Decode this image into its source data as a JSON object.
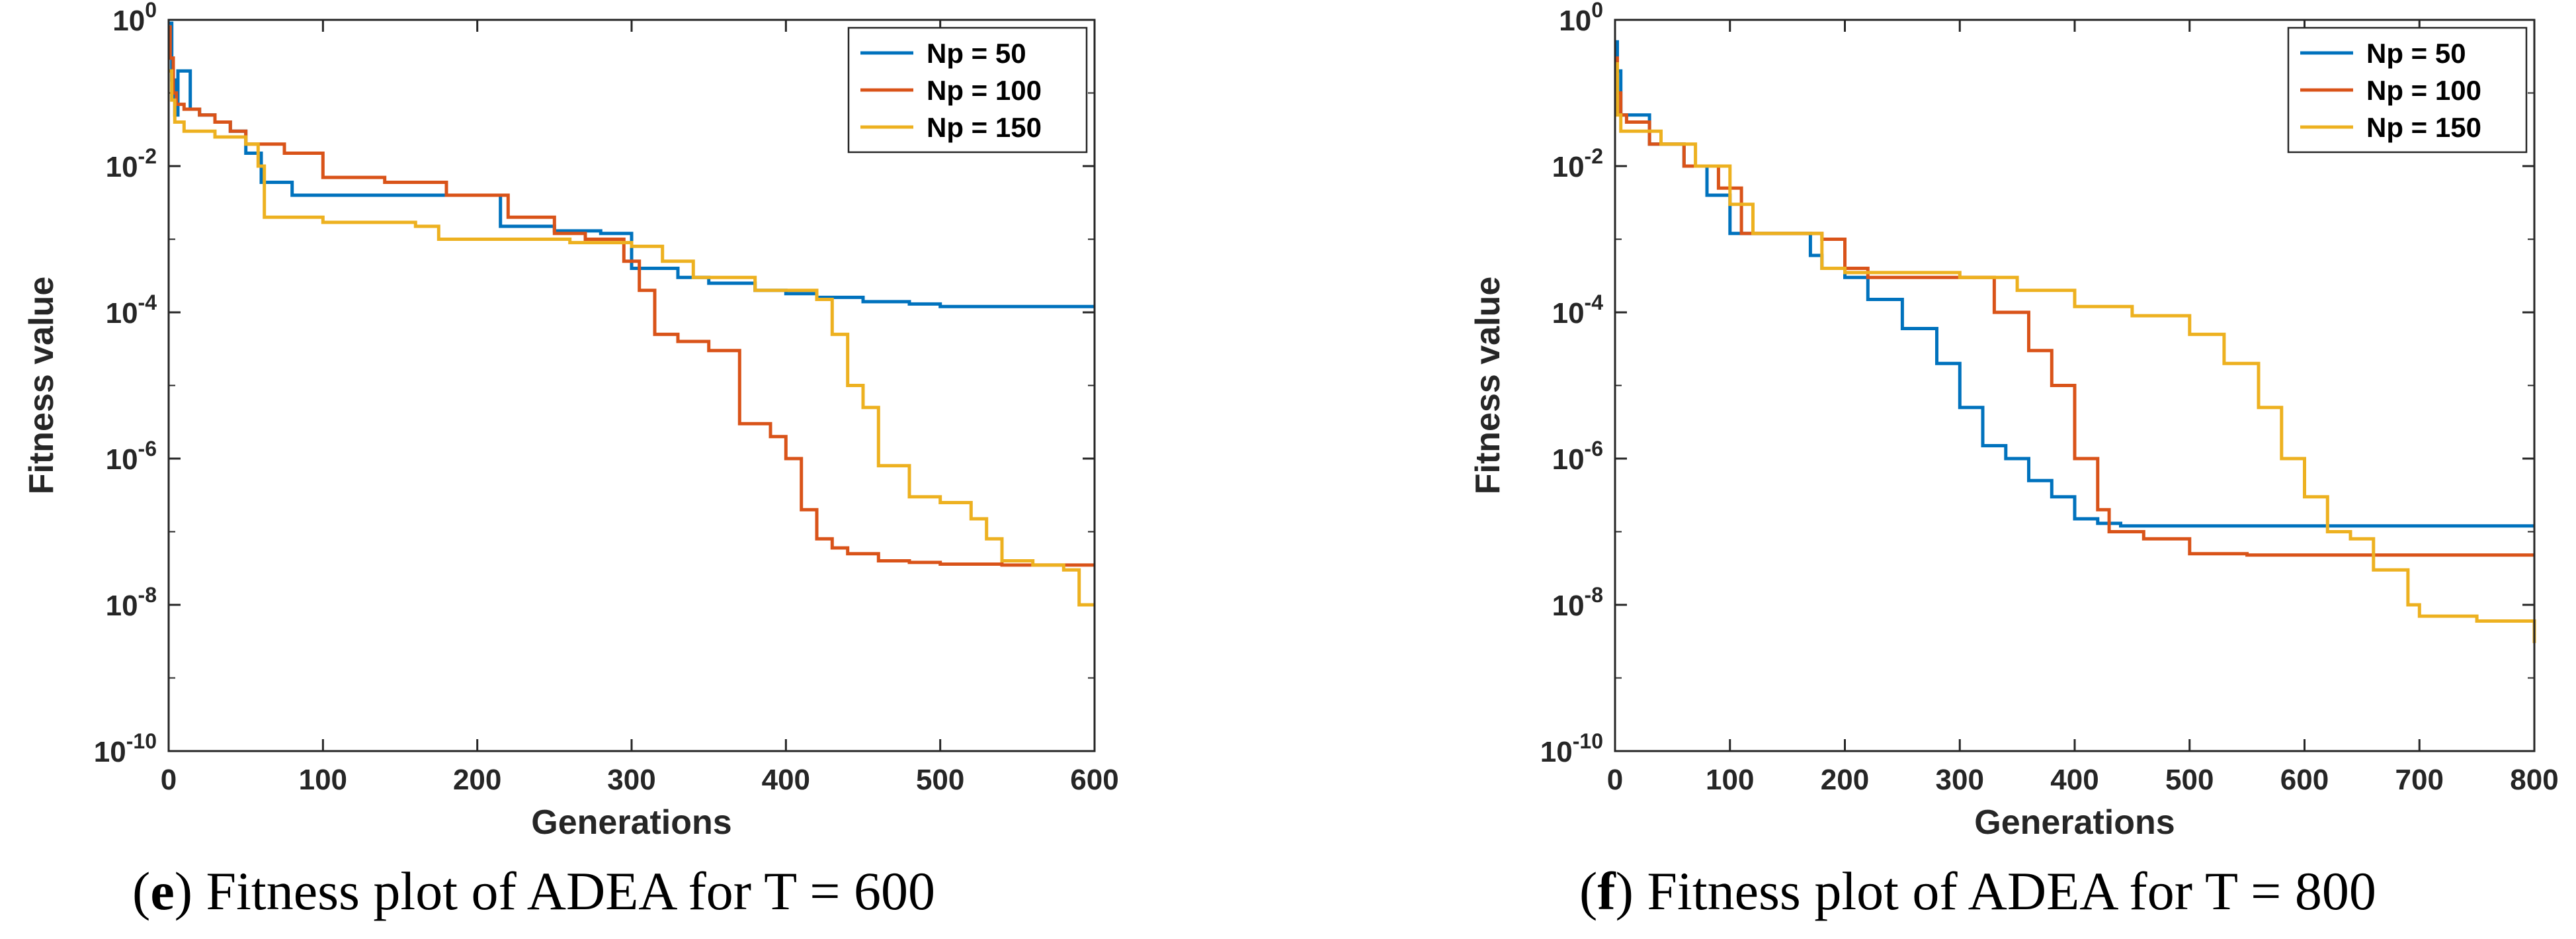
{
  "figure_domain": "Chart",
  "colors": {
    "np50": "#0072BD",
    "np100": "#D95319",
    "np150": "#EDB120",
    "axis": "#262626"
  },
  "chart_data": [
    {
      "id": "e",
      "type": "line",
      "yscale": "log",
      "title": "",
      "xlabel": "Generations",
      "ylabel": "Fitness value",
      "xlim": [
        0,
        600
      ],
      "ylim": [
        1e-10,
        1
      ],
      "xticks": [
        0,
        100,
        200,
        300,
        400,
        500,
        600
      ],
      "xtick_labels": [
        "0",
        "100",
        "200",
        "300",
        "400",
        "500",
        "600"
      ],
      "yticks": [
        {
          "value": 1,
          "base": "10",
          "exp": "0"
        },
        {
          "value": 0.01,
          "base": "10",
          "exp": "-2"
        },
        {
          "value": 0.0001,
          "base": "10",
          "exp": "-4"
        },
        {
          "value": 1e-06,
          "base": "10",
          "exp": "-6"
        },
        {
          "value": 1e-08,
          "base": "10",
          "exp": "-8"
        },
        {
          "value": 1e-10,
          "base": "10",
          "exp": "-10"
        }
      ],
      "legend_position": "top-right",
      "caption": {
        "prefix": "(",
        "letter": "e",
        "text": ") Fitness plot of ADEA for T = 600"
      },
      "series": [
        {
          "name": "Np = 50",
          "color": "#0072BD",
          "x": [
            0,
            2,
            4,
            6,
            10,
            14,
            20,
            30,
            40,
            50,
            60,
            75,
            80,
            100,
            150,
            200,
            215,
            250,
            280,
            290,
            300,
            310,
            330,
            350,
            380,
            400,
            420,
            450,
            480,
            500,
            550,
            600
          ],
          "y": [
            0.9,
            0.15,
            0.05,
            0.2,
            0.2,
            0.06,
            0.05,
            0.04,
            0.03,
            0.015,
            0.006,
            0.006,
            0.004,
            0.004,
            0.004,
            0.004,
            0.0015,
            0.0013,
            0.0012,
            0.0012,
            0.0004,
            0.0004,
            0.0003,
            0.00025,
            0.0002,
            0.00018,
            0.00016,
            0.00014,
            0.00013,
            0.00012,
            0.00012,
            0.00012
          ]
        },
        {
          "name": "Np = 100",
          "color": "#D95319",
          "x": [
            0,
            1,
            3,
            5,
            10,
            20,
            30,
            40,
            50,
            60,
            75,
            100,
            140,
            180,
            220,
            250,
            270,
            295,
            305,
            315,
            330,
            350,
            370,
            390,
            400,
            410,
            420,
            430,
            440,
            460,
            480,
            500,
            540,
            600
          ],
          "y": [
            0.8,
            0.3,
            0.1,
            0.07,
            0.06,
            0.05,
            0.04,
            0.03,
            0.02,
            0.02,
            0.015,
            0.007,
            0.006,
            0.004,
            0.002,
            0.0012,
            0.001,
            0.0005,
            0.0002,
            5e-05,
            4e-05,
            3e-05,
            3e-06,
            2e-06,
            1e-06,
            2e-07,
            8e-08,
            6e-08,
            5e-08,
            4e-08,
            3.8e-08,
            3.6e-08,
            3.5e-08,
            3.5e-08
          ]
        },
        {
          "name": "Np = 150",
          "color": "#EDB120",
          "x": [
            0,
            2,
            4,
            10,
            30,
            50,
            58,
            62,
            100,
            160,
            175,
            220,
            260,
            280,
            300,
            320,
            340,
            380,
            420,
            430,
            440,
            450,
            460,
            480,
            500,
            520,
            530,
            540,
            560,
            580,
            590,
            600
          ],
          "y": [
            0.2,
            0.08,
            0.04,
            0.03,
            0.025,
            0.02,
            0.01,
            0.002,
            0.0017,
            0.0015,
            0.001,
            0.001,
            0.0009,
            0.0009,
            0.0008,
            0.0005,
            0.0003,
            0.0002,
            0.00015,
            5e-05,
            1e-05,
            5e-06,
            8e-07,
            3e-07,
            2.5e-07,
            1.5e-07,
            8e-08,
            4e-08,
            3.5e-08,
            3e-08,
            1e-08,
            1e-08
          ]
        }
      ]
    },
    {
      "id": "f",
      "type": "line",
      "yscale": "log",
      "title": "",
      "xlabel": "Generations",
      "ylabel": "Fitness value",
      "xlim": [
        0,
        800
      ],
      "ylim": [
        1e-10,
        1
      ],
      "xticks": [
        0,
        100,
        200,
        300,
        400,
        500,
        600,
        700,
        800
      ],
      "xtick_labels": [
        "0",
        "100",
        "200",
        "300",
        "400",
        "500",
        "600",
        "700",
        "800"
      ],
      "yticks": [
        {
          "value": 1,
          "base": "10",
          "exp": "0"
        },
        {
          "value": 0.01,
          "base": "10",
          "exp": "-2"
        },
        {
          "value": 0.0001,
          "base": "10",
          "exp": "-4"
        },
        {
          "value": 1e-06,
          "base": "10",
          "exp": "-6"
        },
        {
          "value": 1e-08,
          "base": "10",
          "exp": "-8"
        },
        {
          "value": 1e-10,
          "base": "10",
          "exp": "-10"
        }
      ],
      "legend_position": "top-right",
      "caption": {
        "prefix": "(",
        "letter": "f",
        "text": ") Fitness plot of ADEA for T = 800"
      },
      "series": [
        {
          "name": "Np = 50",
          "color": "#0072BD",
          "x": [
            0,
            2,
            5,
            10,
            30,
            60,
            80,
            100,
            110,
            150,
            170,
            180,
            200,
            220,
            250,
            280,
            300,
            320,
            340,
            360,
            380,
            400,
            420,
            440,
            480,
            500,
            600,
            700,
            800
          ],
          "y": [
            0.5,
            0.2,
            0.05,
            0.05,
            0.02,
            0.01,
            0.004,
            0.0012,
            0.0012,
            0.0012,
            0.0006,
            0.0004,
            0.0003,
            0.00015,
            6e-05,
            2e-05,
            5e-06,
            1.5e-06,
            1e-06,
            5e-07,
            3e-07,
            1.5e-07,
            1.3e-07,
            1.2e-07,
            1.2e-07,
            1.2e-07,
            1.2e-07,
            1.2e-07,
            1.2e-07
          ]
        },
        {
          "name": "Np = 100",
          "color": "#D95319",
          "x": [
            0,
            2,
            5,
            10,
            30,
            60,
            90,
            110,
            120,
            150,
            180,
            200,
            220,
            260,
            300,
            330,
            360,
            380,
            400,
            420,
            430,
            460,
            500,
            550,
            600,
            700,
            800
          ],
          "y": [
            0.3,
            0.1,
            0.05,
            0.04,
            0.02,
            0.01,
            0.005,
            0.0012,
            0.0012,
            0.0012,
            0.001,
            0.0004,
            0.0003,
            0.0003,
            0.0003,
            0.0001,
            3e-05,
            1e-05,
            1e-06,
            2e-07,
            1e-07,
            8e-08,
            5e-08,
            4.8e-08,
            4.8e-08,
            4.8e-08,
            4.8e-08
          ]
        },
        {
          "name": "Np = 150",
          "color": "#EDB120",
          "x": [
            0,
            2,
            5,
            10,
            40,
            70,
            100,
            120,
            170,
            180,
            200,
            250,
            300,
            350,
            400,
            450,
            500,
            530,
            560,
            580,
            600,
            620,
            640,
            660,
            690,
            700,
            750,
            800
          ],
          "y": [
            0.25,
            0.05,
            0.03,
            0.03,
            0.02,
            0.01,
            0.003,
            0.0012,
            0.0012,
            0.0004,
            0.00035,
            0.00035,
            0.0003,
            0.0002,
            0.00012,
            9e-05,
            5e-05,
            2e-05,
            5e-06,
            1e-06,
            3e-07,
            1e-07,
            8e-08,
            3e-08,
            1e-08,
            7e-09,
            6e-09,
            3e-09
          ]
        }
      ]
    }
  ]
}
